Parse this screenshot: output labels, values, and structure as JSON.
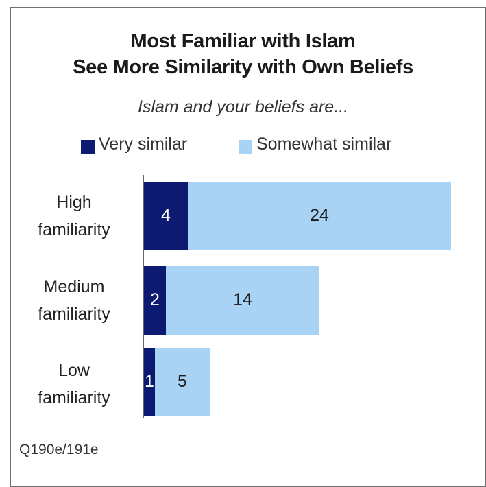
{
  "chart_data": {
    "type": "bar",
    "orientation": "horizontal",
    "stacked": true,
    "title": "Most Familiar with Islam",
    "title_line2": "See More Similarity with Own Beliefs",
    "subtitle": "Islam and your beliefs are...",
    "categories": [
      {
        "line1": "High",
        "line2": "familiarity"
      },
      {
        "line1": "Medium",
        "line2": "familiarity"
      },
      {
        "line1": "Low",
        "line2": "familiarity"
      }
    ],
    "series": [
      {
        "name": "Very similar",
        "color": "#0d1a72",
        "label_color": "#ffffff",
        "values": [
          4,
          2,
          1
        ]
      },
      {
        "name": "Somewhat similar",
        "color": "#a9d3f5",
        "label_color": "#1a1a1a",
        "values": [
          24,
          14,
          5
        ]
      }
    ],
    "xlim": [
      0,
      28
    ],
    "grid": false,
    "legend_position": "top",
    "note": "Q190e/191e"
  }
}
